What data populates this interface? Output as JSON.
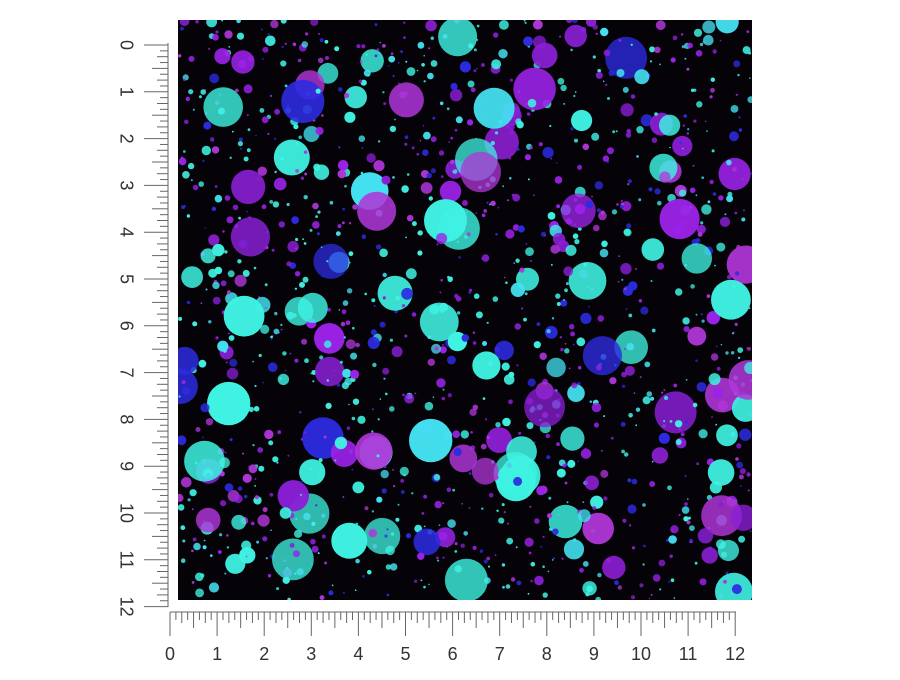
{
  "rulers": {
    "horizontal": {
      "labels": [
        0,
        1,
        2,
        3,
        4,
        5,
        6,
        7,
        8,
        9,
        10,
        11,
        12
      ]
    },
    "vertical": {
      "labels": [
        0,
        1,
        2,
        3,
        4,
        5,
        6,
        7,
        8,
        9,
        10,
        11,
        12
      ]
    }
  }
}
